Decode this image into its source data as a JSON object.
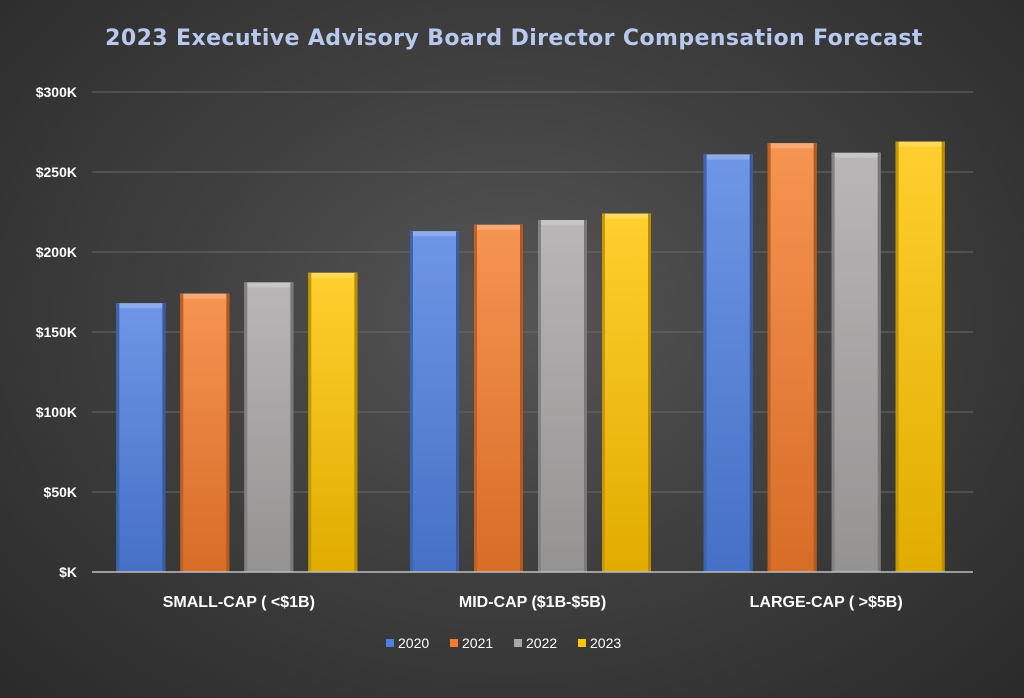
{
  "chart_data": {
    "type": "bar",
    "title": "2023 Executive Advisory Board Director Compensation Forecast",
    "xlabel": "",
    "ylabel": "",
    "categories": [
      "SMALL-CAP ( <$1B)",
      "MID-CAP ($1B-$5B)",
      "LARGE-CAP ( >$5B)"
    ],
    "series": [
      {
        "name": "2020",
        "values": [
          168000,
          213000,
          261000
        ],
        "color": "#4f7fe0"
      },
      {
        "name": "2021",
        "values": [
          174000,
          217000,
          268000
        ],
        "color": "#f47c2c"
      },
      {
        "name": "2022",
        "values": [
          181000,
          220000,
          262000
        ],
        "color": "#a9a6a6"
      },
      {
        "name": "2023",
        "values": [
          187000,
          224000,
          269000
        ],
        "color": "#ffc400"
      }
    ],
    "ylim": [
      0,
      300000
    ],
    "yticks": [
      {
        "value": 0,
        "label": "$K"
      },
      {
        "value": 50000,
        "label": "$50K"
      },
      {
        "value": 100000,
        "label": "$100K"
      },
      {
        "value": 150000,
        "label": "$150K"
      },
      {
        "value": 200000,
        "label": "$200K"
      },
      {
        "value": 250000,
        "label": "$250K"
      },
      {
        "value": 300000,
        "label": "$300K"
      }
    ],
    "grid": true,
    "legend_position": "bottom"
  }
}
